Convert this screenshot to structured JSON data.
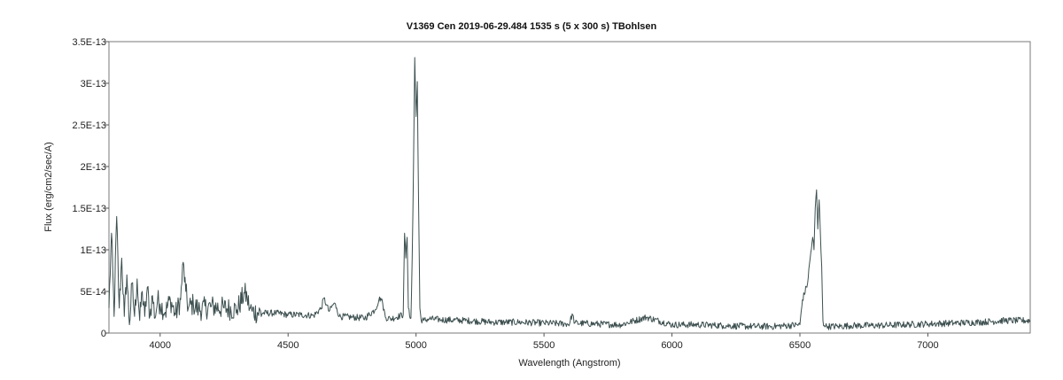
{
  "chart_data": {
    "type": "line",
    "title": "V1369 Cen   2019-06-29.484   1535 s (5 x 300 s)   TBohlsen",
    "xlabel": "Wavelength (Angstrom)",
    "ylabel": "Flux (erg/cm2/sec/A)",
    "xlim": [
      3800,
      7400
    ],
    "ylim": [
      0,
      3.5e-13
    ],
    "x_ticks": [
      4000,
      4500,
      5000,
      5500,
      6000,
      6500,
      7000
    ],
    "x_tick_labels": [
      "4000",
      "4500",
      "5000",
      "5500",
      "6000",
      "6500",
      "7000"
    ],
    "y_ticks": [
      0,
      5e-14,
      1e-13,
      1.5e-13,
      2e-13,
      2.5e-13,
      3e-13,
      3.5e-13
    ],
    "y_tick_labels": [
      "0",
      "5E-14",
      "1E-13",
      "1.5E-13",
      "2E-13",
      "2.5E-13",
      "3E-13",
      "3.5E-13"
    ],
    "grid": false,
    "line_color": "#3d4f4f",
    "series": [
      {
        "x": [
          3800,
          3810,
          3820,
          3830,
          3840,
          3850,
          3860,
          3870,
          3880,
          3890,
          3900,
          3910,
          3920,
          3930,
          3940,
          3950,
          3960,
          3970,
          3980,
          3990,
          4000,
          4020,
          4040,
          4060,
          4080,
          4090,
          4100,
          4110,
          4130,
          4150,
          4200,
          4250,
          4300,
          4330,
          4340,
          4350,
          4360,
          4400,
          4450,
          4500,
          4550,
          4600,
          4630,
          4640,
          4650,
          4660,
          4680,
          4690,
          4700,
          4750,
          4800,
          4840,
          4855,
          4862,
          4870,
          4880,
          4900,
          4950,
          4955,
          4960,
          4965,
          4970,
          4975,
          4980,
          4985,
          4990,
          4995,
          5000,
          5005,
          5010,
          5015,
          5020,
          5030,
          5050,
          5100,
          5200,
          5300,
          5400,
          5500,
          5600,
          5610,
          5620,
          5700,
          5800,
          5900,
          6000,
          6100,
          6200,
          6300,
          6400,
          6500,
          6510,
          6530,
          6540,
          6550,
          6555,
          6560,
          6565,
          6570,
          6575,
          6580,
          6585,
          6590,
          6595,
          6600,
          6610,
          6650,
          6700,
          6800,
          6900,
          7000,
          7100,
          7200,
          7300,
          7400
        ],
        "y": [
          3e-14,
          1.2e-13,
          2e-14,
          1.4e-13,
          3e-14,
          9e-14,
          2e-14,
          7e-14,
          1e-14,
          6e-14,
          2e-14,
          6.5e-14,
          1.5e-14,
          5e-14,
          2e-14,
          5.5e-14,
          2e-14,
          4.5e-14,
          1.8e-14,
          4e-14,
          3.5e-14,
          2.5e-14,
          4e-14,
          2.2e-14,
          4e-14,
          8.5e-14,
          5e-14,
          3e-14,
          3.5e-14,
          2.8e-14,
          3.2e-14,
          3e-14,
          2.8e-14,
          4.8e-14,
          4.2e-14,
          3e-14,
          2.6e-14,
          2.4e-14,
          2.4e-14,
          2.2e-14,
          2.2e-14,
          2.1e-14,
          3e-14,
          4.2e-14,
          3.4e-14,
          2.6e-14,
          3.6e-14,
          3e-14,
          2e-14,
          1.9e-14,
          1.8e-14,
          2.8e-14,
          4e-14,
          4.2e-14,
          3.5e-14,
          1.9e-14,
          1.7e-14,
          2.2e-14,
          1.2e-13,
          9e-14,
          1.15e-13,
          3e-14,
          2e-14,
          1.8e-14,
          9e-14,
          2e-13,
          3.31e-13,
          2.6e-13,
          3.02e-13,
          1.5e-13,
          3e-14,
          1.6e-14,
          1.5e-14,
          1.7e-14,
          1.6e-14,
          1.5e-14,
          1.3e-14,
          1.3e-14,
          1.2e-14,
          1.1e-14,
          2.3e-14,
          1.2e-14,
          1.1e-14,
          1e-14,
          1.9e-14,
          1e-14,
          1e-14,
          9e-15,
          8e-15,
          8e-15,
          1e-14,
          4e-14,
          6e-14,
          9e-14,
          1.15e-13,
          1e-13,
          1.5e-13,
          1.72e-13,
          1.25e-13,
          1.6e-13,
          1.2e-13,
          8e-14,
          1.5e-14,
          9e-15,
          8e-15,
          8e-15,
          8e-15,
          9e-15,
          9e-15,
          1e-14,
          1.1e-14,
          1.2e-14,
          1.3e-14,
          1.5e-14,
          1.5e-14
        ]
      }
    ]
  }
}
